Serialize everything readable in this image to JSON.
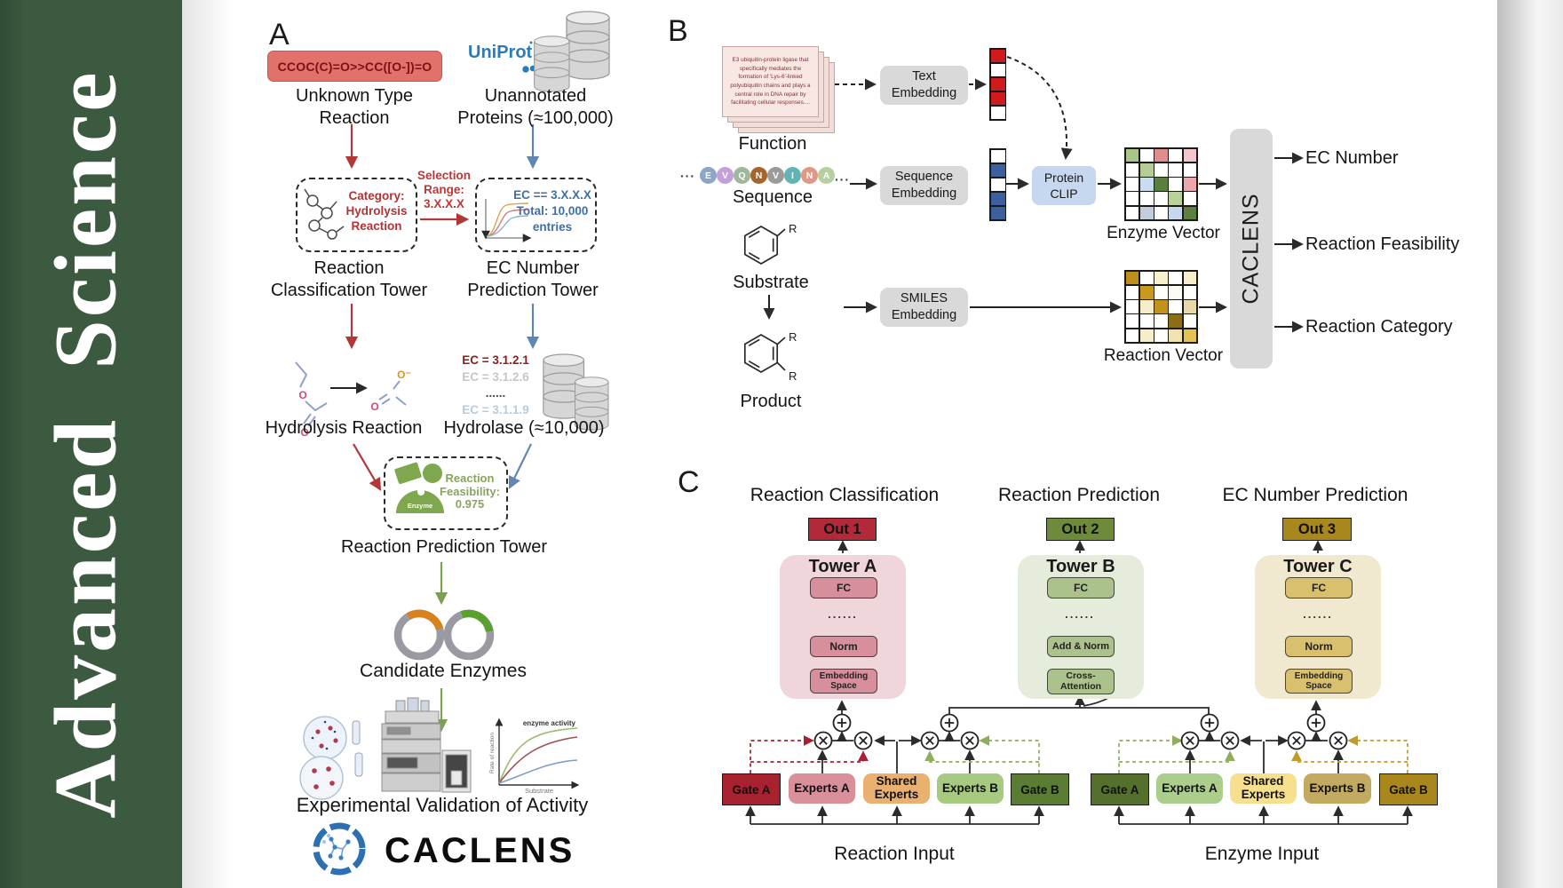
{
  "colors": {
    "sidebar_green": "#3c5a40",
    "uniprot_blue": "#2a7cb8",
    "smiles_pill_bg": "#e2716c",
    "red_accent": "#b23737",
    "blue_accent": "#6286b3",
    "green_accent": "#7aa24e",
    "out1_bg": "#b2293a",
    "out2_bg": "#6d8b3a",
    "out3_bg": "#a8871c"
  },
  "sidebar": {
    "title": "Advanced  Science"
  },
  "panelA": {
    "label": "A",
    "smiles": "CCOC(C)=O>>CC([O-])=O",
    "unknown_line1": "Unknown Type",
    "unknown_line2": "Reaction",
    "uniprot": "UniProt",
    "unannotated_line1": "Unannotated",
    "unannotated_line2": "Proteins (≈100,000)",
    "category_line1": "Category:",
    "category_line2": "Hydrolysis",
    "category_line3": "Reaction",
    "selection_line1": "Selection",
    "selection_line2": "Range:",
    "selection_line3": "3.X.X.X",
    "ecbox_line1": "EC == 3.X.X.X",
    "ecbox_line2": "Total: 10,000",
    "ecbox_line3": "entries",
    "tower1_line1": "Reaction",
    "tower1_line2": "Classification Tower",
    "tower2_line1": "EC Number",
    "tower2_line2": "Prediction Tower",
    "hydrolysis": "Hydrolysis Reaction",
    "ec_list": [
      {
        "text": "EC = 3.1.2.1",
        "color": "#8f1d1d",
        "bold": true
      },
      {
        "text": "EC = 3.1.2.6",
        "color": "#c6c6c6",
        "bold": false
      },
      {
        "text": "......",
        "color": "#4a4a4a",
        "bold": true
      },
      {
        "text": "EC = 3.1.1.9",
        "color": "#b5cce3",
        "bold": false
      }
    ],
    "hydrolase": "Hydrolase (≈10,000)",
    "enzyme_badge": "Enzyme",
    "feasibility_line1": "Reaction",
    "feasibility_line2": "Feasibility:",
    "feasibility_line3": "0.975",
    "tower3": "Reaction Prediction Tower",
    "candidate": "Candidate Enzymes",
    "activity_plot": {
      "curve_label": "enzyme activity",
      "ylabel": "Rate of reaction",
      "xlabel": "Substrate"
    },
    "validation": "Experimental Validation of Activity",
    "logo": "CACLENS",
    "atom_o": "O",
    "atom_o_minus": "O⁻"
  },
  "panelB": {
    "label": "B",
    "card_text": "E3 ubiquitin-protein ligase that specifically mediates the formation of 'Lys-6'-linked polyubiquitin chains and plays a central role in DNA repair by facilitating cellular responses....",
    "function_label": "Function",
    "ellipsis": "···",
    "residues": [
      {
        "letter": "E",
        "color": "#8ba6c6"
      },
      {
        "letter": "V",
        "color": "#c49fdb"
      },
      {
        "letter": "Q",
        "color": "#9eb89b"
      },
      {
        "letter": "N",
        "color": "#a9642a"
      },
      {
        "letter": "V",
        "color": "#9b9b9b"
      },
      {
        "letter": "I",
        "color": "#62b4b4"
      },
      {
        "letter": "N",
        "color": "#e29887"
      },
      {
        "letter": "A",
        "color": "#b6cf9e"
      }
    ],
    "sequence_label": "Sequence",
    "substrate_label": "Substrate",
    "product_label": "Product",
    "r_label": "R",
    "text_embedding_line1": "Text",
    "text_embedding_line2": "Embedding",
    "sequence_embedding_line1": "Sequence",
    "sequence_embedding_line2": "Embedding",
    "smiles_embedding_line1": "SMILES",
    "smiles_embedding_line2": "Embedding",
    "protein_clip_line1": "Protein",
    "protein_clip_line2": "CLIP",
    "text_vector": [
      "#cf1b1b",
      "#ffffff",
      "#cf1b1b",
      "#cf1b1b",
      "#ffffff"
    ],
    "sequence_vector": [
      "#ffffff",
      "#3e5f9e",
      "#ffffff",
      "#3e5f9e",
      "#3e5f9e"
    ],
    "enzyme_vector_label": "Enzyme Vector",
    "reaction_vector_label": "Reaction Vector",
    "enzyme_matrix": [
      "#a9c689",
      "#ffffff",
      "#e08d8d",
      "#ffffff",
      "#f3c6ce",
      "#ffffff",
      "#b5cc96",
      "#ffffff",
      "#ffffff",
      "#ffffff",
      "#ffffff",
      "#c9dcf0",
      "#5a7f3c",
      "#ffffff",
      "#eba6ae",
      "#ffffff",
      "#ffffff",
      "#ffffff",
      "#b9d199",
      "#ffffff",
      "#ffffff",
      "#c4cedb",
      "#ffffff",
      "#c5d8ee",
      "#5d8040"
    ],
    "reaction_matrix": [
      "#bf8f1e",
      "#ffffff",
      "#f7f0cf",
      "#ffffff",
      "#f9eecb",
      "#ffffff",
      "#c8991f",
      "#ffffff",
      "#fdfbf4",
      "#ffffff",
      "#ffffff",
      "#f5ecca",
      "#c1931d",
      "#ffffff",
      "#ead9a8",
      "#ffffff",
      "#ffffff",
      "#ffffff",
      "#8a6d14",
      "#ffffff",
      "#ffffff",
      "#f6eecb",
      "#ffffff",
      "#f2e3ae",
      "#e3c252"
    ],
    "caclens": "CACLENS",
    "output1": "EC Number",
    "output2": "Reaction Feasibility",
    "output3": "Reaction Category"
  },
  "panelC": {
    "label": "C",
    "title1": "Reaction Classification",
    "title2": "Reaction Prediction",
    "title3": "EC Number Prediction",
    "out1": "Out 1",
    "out2": "Out 2",
    "out3": "Out 3",
    "towerA": {
      "name": "Tower A",
      "fc": "FC",
      "dots": "......",
      "norm": "Norm",
      "emb_line1": "Embedding",
      "emb_line2": "Space"
    },
    "towerB": {
      "name": "Tower B",
      "fc": "FC",
      "dots": "......",
      "addnorm": "Add & Norm",
      "cross_line1": "Cross-",
      "cross_line2": "Attention"
    },
    "towerC": {
      "name": "Tower C",
      "fc": "FC",
      "dots": "......",
      "norm": "Norm",
      "emb_line1": "Embedding",
      "emb_line2": "Space"
    },
    "reaction_group": {
      "gate_a": "Gate A",
      "experts_a": "Experts A",
      "shared_line1": "Shared",
      "shared_line2": "Experts",
      "experts_b": "Experts B",
      "gate_b": "Gate B",
      "input": "Reaction Input"
    },
    "enzyme_group": {
      "gate_a": "Gate A",
      "experts_a": "Experts A",
      "shared_line1": "Shared",
      "shared_line2": "Experts",
      "experts_b": "Experts B",
      "gate_b": "Gate B",
      "input": "Enzyme Input"
    }
  }
}
